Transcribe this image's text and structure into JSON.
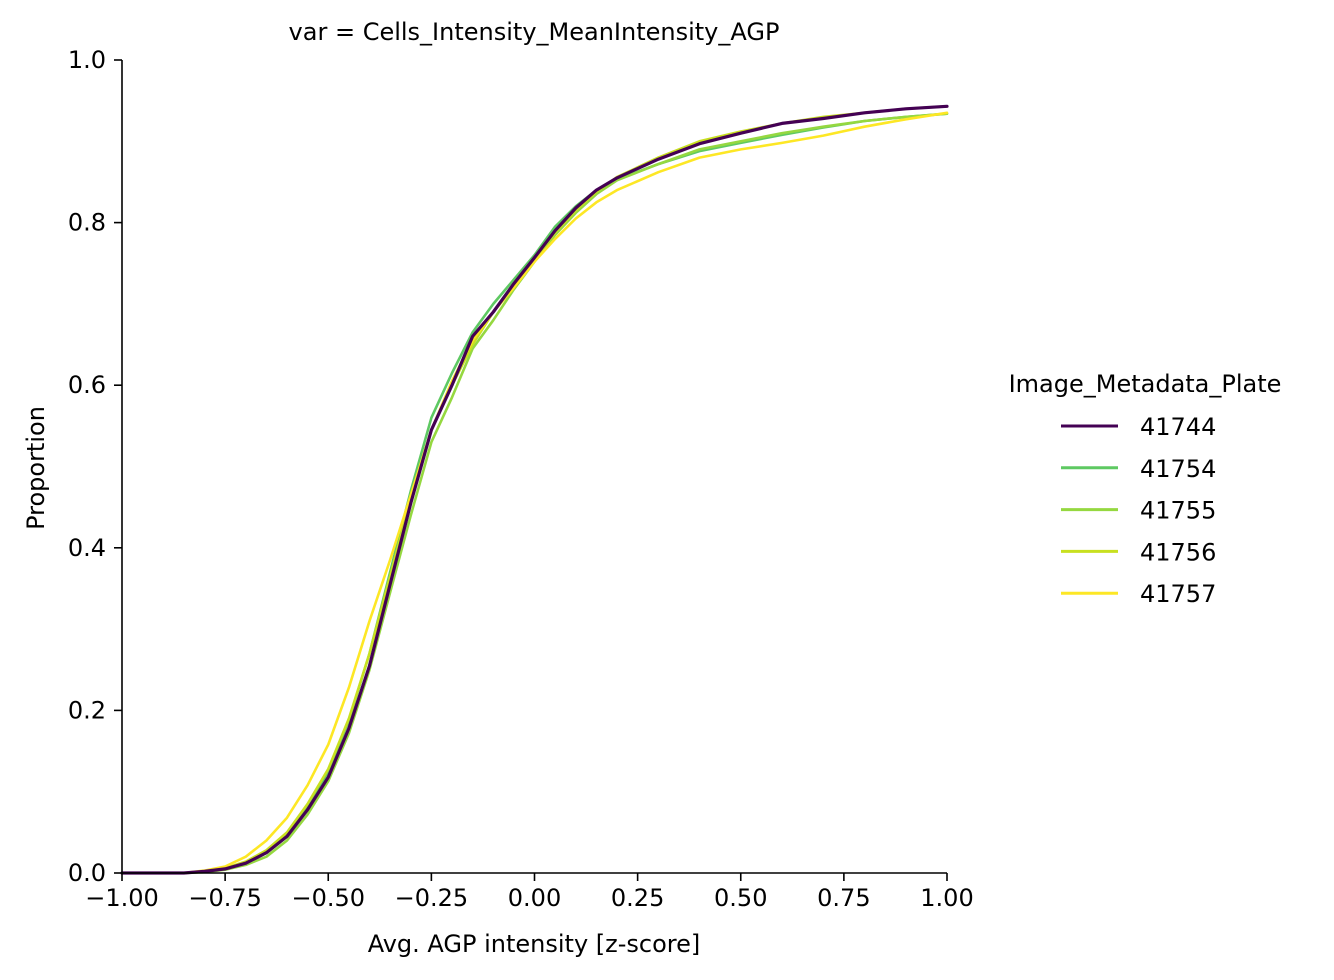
{
  "chart_data": {
    "type": "line",
    "title": "var = Cells_Intensity_MeanIntensity_AGP",
    "xlabel": "Avg. AGP intensity [z-score]",
    "ylabel": "Proportion",
    "xlim": [
      -1.0,
      1.0
    ],
    "ylim": [
      0.0,
      1.0
    ],
    "xticks": [
      -1.0,
      -0.75,
      -0.5,
      -0.25,
      0.0,
      0.25,
      0.5,
      0.75,
      1.0
    ],
    "xtick_labels": [
      "−1.00",
      "−0.75",
      "−0.50",
      "−0.25",
      "0.00",
      "0.25",
      "0.50",
      "0.75",
      "1.00"
    ],
    "yticks": [
      0.0,
      0.2,
      0.4,
      0.6,
      0.8,
      1.0
    ],
    "ytick_labels": [
      "0.0",
      "0.2",
      "0.4",
      "0.6",
      "0.8",
      "1.0"
    ],
    "grid": false,
    "legend": {
      "title": "Image_Metadata_Plate",
      "placement": "right"
    },
    "series": [
      {
        "name": "41744",
        "color": "#440154",
        "x": [
          -1.0,
          -0.85,
          -0.8,
          -0.75,
          -0.7,
          -0.65,
          -0.6,
          -0.55,
          -0.5,
          -0.45,
          -0.4,
          -0.35,
          -0.3,
          -0.25,
          -0.2,
          -0.15,
          -0.1,
          -0.05,
          0.0,
          0.05,
          0.1,
          0.15,
          0.2,
          0.3,
          0.4,
          0.5,
          0.6,
          0.7,
          0.8,
          0.9,
          1.0
        ],
        "y": [
          0.0,
          0.0,
          0.002,
          0.005,
          0.012,
          0.025,
          0.045,
          0.078,
          0.118,
          0.178,
          0.255,
          0.355,
          0.455,
          0.545,
          0.6,
          0.66,
          0.69,
          0.725,
          0.757,
          0.79,
          0.818,
          0.84,
          0.855,
          0.878,
          0.897,
          0.91,
          0.922,
          0.928,
          0.935,
          0.94,
          0.943
        ]
      },
      {
        "name": "41754",
        "color": "#5ec962",
        "x": [
          -1.0,
          -0.85,
          -0.8,
          -0.75,
          -0.7,
          -0.65,
          -0.6,
          -0.55,
          -0.5,
          -0.45,
          -0.4,
          -0.35,
          -0.3,
          -0.25,
          -0.2,
          -0.15,
          -0.1,
          -0.05,
          0.0,
          0.05,
          0.1,
          0.15,
          0.2,
          0.3,
          0.4,
          0.5,
          0.6,
          0.7,
          0.8,
          0.9,
          1.0
        ],
        "y": [
          0.0,
          0.0,
          0.002,
          0.005,
          0.012,
          0.025,
          0.048,
          0.082,
          0.125,
          0.188,
          0.27,
          0.37,
          0.47,
          0.56,
          0.615,
          0.665,
          0.7,
          0.73,
          0.76,
          0.795,
          0.82,
          0.84,
          0.853,
          0.872,
          0.888,
          0.898,
          0.908,
          0.917,
          0.925,
          0.93,
          0.934
        ]
      },
      {
        "name": "41755",
        "color": "#95d840",
        "x": [
          -1.0,
          -0.85,
          -0.8,
          -0.75,
          -0.7,
          -0.65,
          -0.6,
          -0.55,
          -0.5,
          -0.45,
          -0.4,
          -0.35,
          -0.3,
          -0.25,
          -0.2,
          -0.15,
          -0.1,
          -0.05,
          0.0,
          0.05,
          0.1,
          0.15,
          0.2,
          0.3,
          0.4,
          0.5,
          0.6,
          0.7,
          0.8,
          0.9,
          1.0
        ],
        "y": [
          0.0,
          0.0,
          0.001,
          0.004,
          0.01,
          0.02,
          0.04,
          0.072,
          0.113,
          0.172,
          0.25,
          0.345,
          0.44,
          0.53,
          0.585,
          0.645,
          0.68,
          0.718,
          0.752,
          0.785,
          0.812,
          0.835,
          0.852,
          0.872,
          0.89,
          0.9,
          0.91,
          0.918,
          0.925,
          0.93,
          0.934
        ]
      },
      {
        "name": "41756",
        "color": "#c8e020",
        "x": [
          -1.0,
          -0.85,
          -0.8,
          -0.75,
          -0.7,
          -0.65,
          -0.6,
          -0.55,
          -0.5,
          -0.45,
          -0.4,
          -0.35,
          -0.3,
          -0.25,
          -0.2,
          -0.15,
          -0.1,
          -0.05,
          0.0,
          0.05,
          0.1,
          0.15,
          0.2,
          0.3,
          0.4,
          0.5,
          0.6,
          0.7,
          0.8,
          0.9,
          1.0
        ],
        "y": [
          0.0,
          0.0,
          0.002,
          0.006,
          0.014,
          0.028,
          0.05,
          0.085,
          0.128,
          0.19,
          0.27,
          0.365,
          0.46,
          0.545,
          0.6,
          0.65,
          0.69,
          0.725,
          0.755,
          0.788,
          0.815,
          0.838,
          0.856,
          0.88,
          0.9,
          0.912,
          0.922,
          0.93,
          0.935,
          0.94,
          0.943
        ]
      },
      {
        "name": "41757",
        "color": "#fde725",
        "x": [
          -1.0,
          -0.85,
          -0.8,
          -0.75,
          -0.7,
          -0.65,
          -0.6,
          -0.55,
          -0.5,
          -0.45,
          -0.4,
          -0.35,
          -0.3,
          -0.25,
          -0.2,
          -0.15,
          -0.1,
          -0.05,
          0.0,
          0.05,
          0.1,
          0.15,
          0.2,
          0.3,
          0.4,
          0.5,
          0.6,
          0.7,
          0.8,
          0.9,
          1.0
        ],
        "y": [
          0.0,
          0.0,
          0.003,
          0.008,
          0.02,
          0.04,
          0.068,
          0.108,
          0.158,
          0.228,
          0.31,
          0.385,
          0.465,
          0.545,
          0.605,
          0.655,
          0.69,
          0.72,
          0.752,
          0.78,
          0.805,
          0.825,
          0.84,
          0.862,
          0.88,
          0.89,
          0.898,
          0.907,
          0.918,
          0.927,
          0.935
        ]
      }
    ]
  }
}
